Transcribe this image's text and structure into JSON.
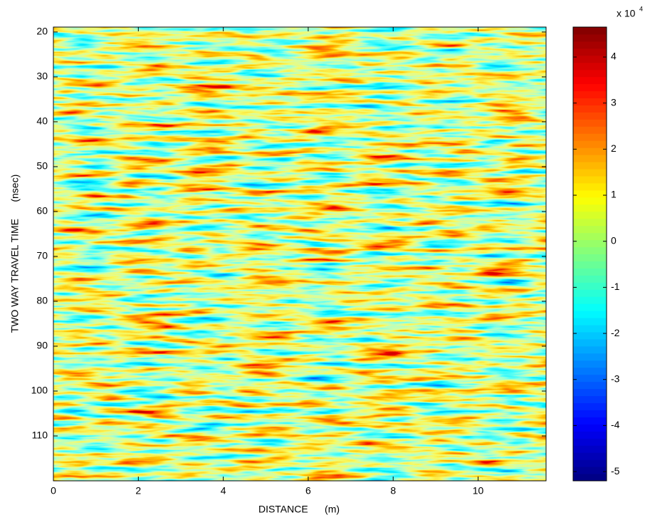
{
  "chart_data": {
    "type": "heatmap",
    "xlabel": "DISTANCE      (m)",
    "ylabel": "TWO WAY TRAVEL TIME      (nsec)",
    "xlim": [
      0,
      11.6
    ],
    "xticks": [
      0,
      2,
      4,
      6,
      8,
      10
    ],
    "ylim": [
      18.9,
      120
    ],
    "yticks": [
      20,
      30,
      40,
      50,
      60,
      70,
      80,
      90,
      100,
      110
    ],
    "y_reversed": true,
    "colormap": "jet",
    "clim": [
      -5.2,
      4.65
    ],
    "cticks": [
      -5,
      -4,
      -3,
      -2,
      -1,
      0,
      1,
      2,
      3,
      4
    ],
    "colorbar_label": {
      "base": "x 10",
      "exponent": "4"
    }
  }
}
